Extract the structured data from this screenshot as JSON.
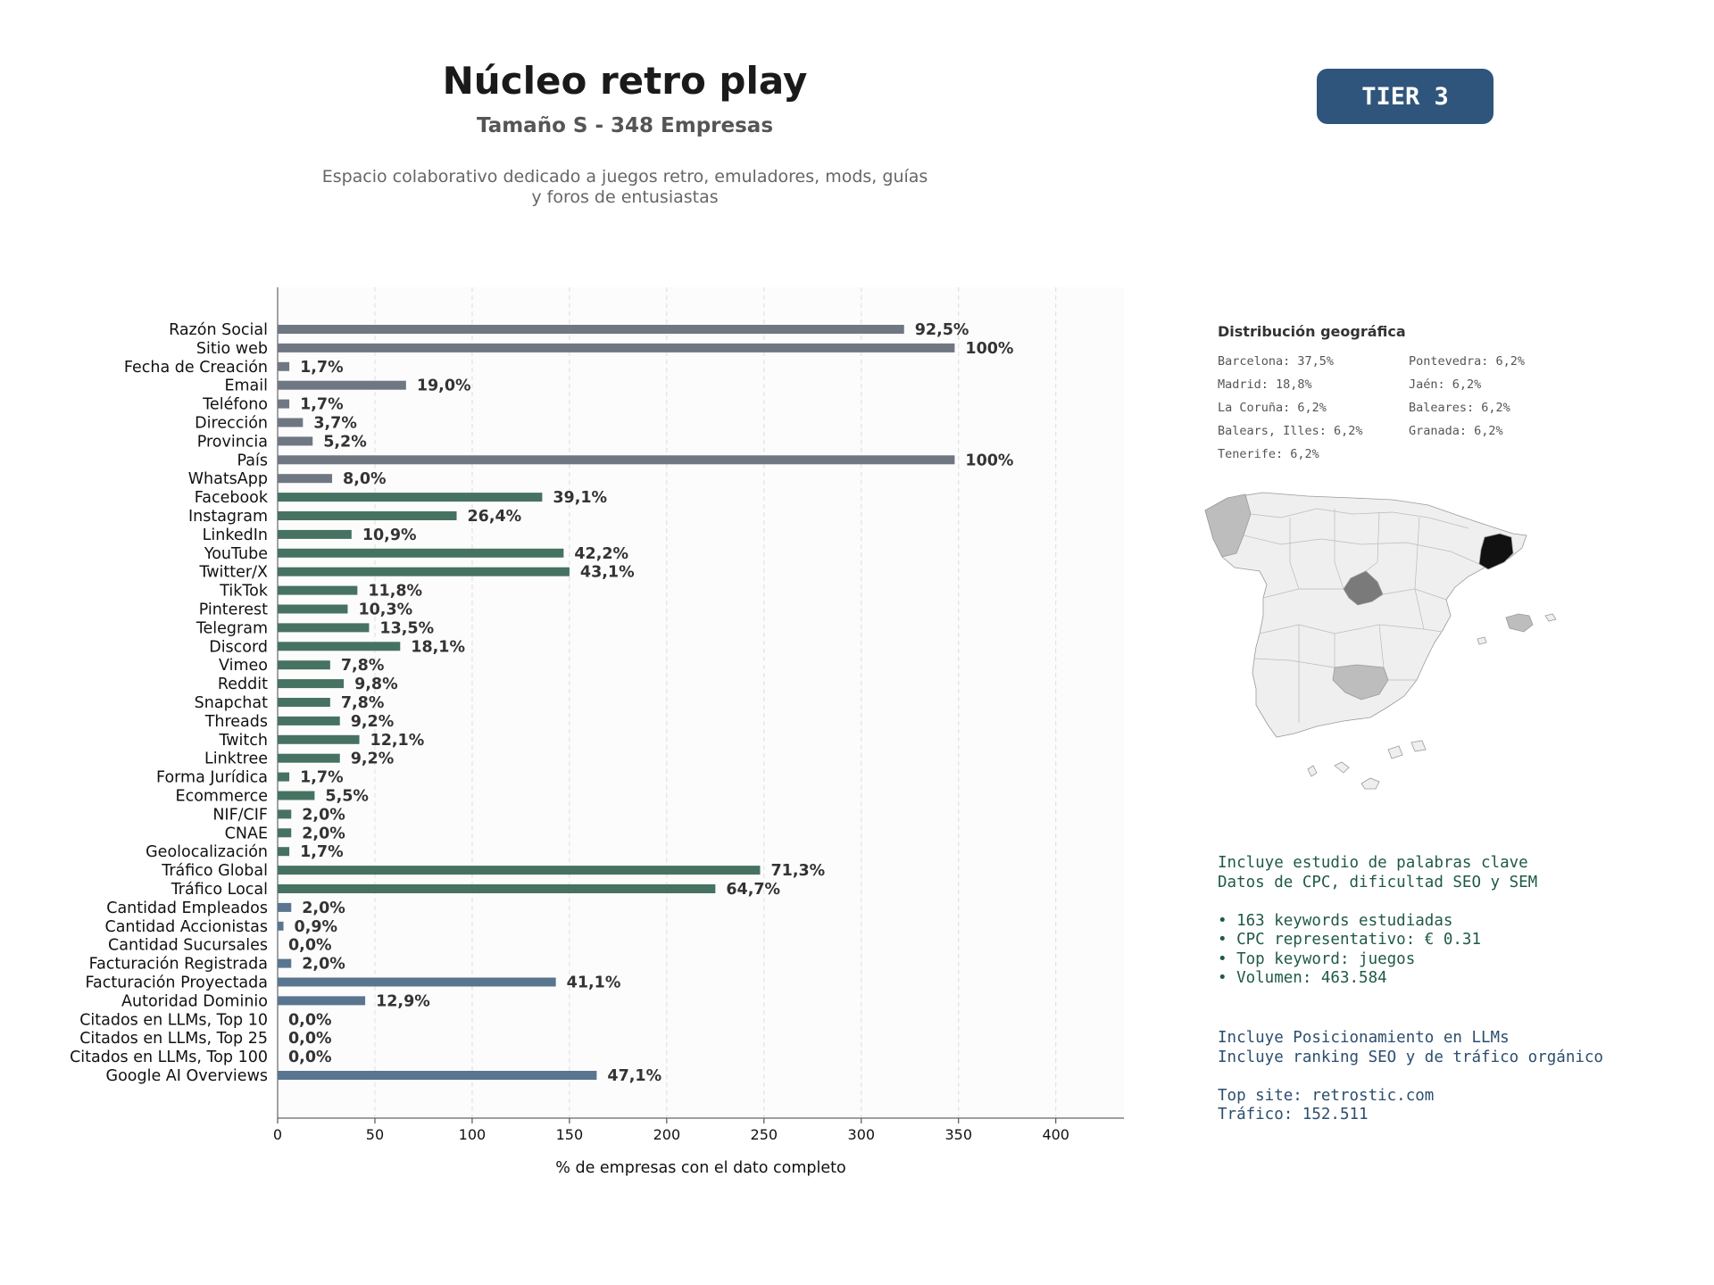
{
  "header": {
    "title": "Núcleo retro play",
    "subtitle": "Tamaño S - 348 Empresas",
    "description_line1": "Espacio colaborativo dedicado a juegos retro, emuladores, mods, guías",
    "description_line2": "y foros de entusiastas",
    "tier": "TIER 3"
  },
  "colors": {
    "gray": "#6e7782",
    "green": "#467262",
    "blue": "#5a7590"
  },
  "chart_data": {
    "type": "bar",
    "orientation": "horizontal",
    "xlabel": "% de empresas con el dato completo",
    "xlim": [
      0,
      435
    ],
    "xticks": [
      0,
      50,
      100,
      150,
      200,
      250,
      300,
      350,
      400
    ],
    "grid": "vertical dashed",
    "categories": [
      "Razón Social",
      "Sitio web",
      "Fecha de Creación",
      "Email",
      "Teléfono",
      "Dirección",
      "Provincia",
      "País",
      "WhatsApp",
      "Facebook",
      "Instagram",
      "LinkedIn",
      "YouTube",
      "Twitter/X",
      "TikTok",
      "Pinterest",
      "Telegram",
      "Discord",
      "Vimeo",
      "Reddit",
      "Snapchat",
      "Threads",
      "Twitch",
      "Linktree",
      "Forma Jurídica",
      "Ecommerce",
      "NIF/CIF",
      "CNAE",
      "Geolocalización",
      "Tráfico Global",
      "Tráfico Local",
      "Cantidad Empleados",
      "Cantidad Accionistas",
      "Cantidad Sucursales",
      "Facturación Registrada",
      "Facturación Proyectada",
      "Autoridad Dominio",
      "Citados en LLMs, Top 10",
      "Citados en LLMs, Top 25",
      "Citados en LLMs, Top 100",
      "Google AI Overviews"
    ],
    "values": [
      322,
      348,
      6,
      66,
      6,
      13,
      18,
      348,
      28,
      136,
      92,
      38,
      147,
      150,
      41,
      36,
      47,
      63,
      27,
      34,
      27,
      32,
      42,
      32,
      6,
      19,
      7,
      7,
      6,
      248,
      225,
      7,
      3,
      0,
      7,
      143,
      45,
      0,
      0,
      0,
      164
    ],
    "labels": [
      "92,5%",
      "100%",
      "1,7%",
      "19,0%",
      "1,7%",
      "3,7%",
      "5,2%",
      "100%",
      "8,0%",
      "39,1%",
      "26,4%",
      "10,9%",
      "42,2%",
      "43,1%",
      "11,8%",
      "10,3%",
      "13,5%",
      "18,1%",
      "7,8%",
      "9,8%",
      "7,8%",
      "9,2%",
      "12,1%",
      "9,2%",
      "1,7%",
      "5,5%",
      "2,0%",
      "2,0%",
      "1,7%",
      "71,3%",
      "64,7%",
      "2,0%",
      "0,9%",
      "0,0%",
      "2,0%",
      "41,1%",
      "12,9%",
      "0,0%",
      "0,0%",
      "0,0%",
      "47,1%"
    ],
    "groups": [
      "gray",
      "gray",
      "gray",
      "gray",
      "gray",
      "gray",
      "gray",
      "gray",
      "gray",
      "green",
      "green",
      "green",
      "green",
      "green",
      "green",
      "green",
      "green",
      "green",
      "green",
      "green",
      "green",
      "green",
      "green",
      "green",
      "green",
      "green",
      "green",
      "green",
      "green",
      "green",
      "green",
      "blue",
      "blue",
      "blue",
      "blue",
      "blue",
      "blue",
      "blue",
      "blue",
      "blue",
      "blue"
    ]
  },
  "geo": {
    "title": "Distribución geográfica",
    "items": [
      "Barcelona: 37,5%",
      "Pontevedra: 6,2%",
      "Madrid: 18,8%",
      "Jaén: 6,2%",
      "La Coruña: 6,2%",
      "Baleares: 6,2%",
      "Balears, Illes: 6,2%",
      "Granada: 6,2%",
      "Tenerife: 6,2%"
    ]
  },
  "keywords": {
    "line1": "Incluye estudio de palabras clave",
    "line2": "Datos de CPC, dificultad SEO y SEM",
    "bullet1": "• 163 keywords estudiadas",
    "bullet2": "• CPC representativo: € 0.31",
    "bullet3": "• Top keyword: juegos",
    "bullet4": "• Volumen: 463.584"
  },
  "llm": {
    "line1": "Incluye Posicionamiento en LLMs",
    "line2": "Incluye ranking SEO y de tráfico orgánico",
    "top_site": "Top site: retrostic.com",
    "traffic": "Tráfico: 152.511"
  }
}
